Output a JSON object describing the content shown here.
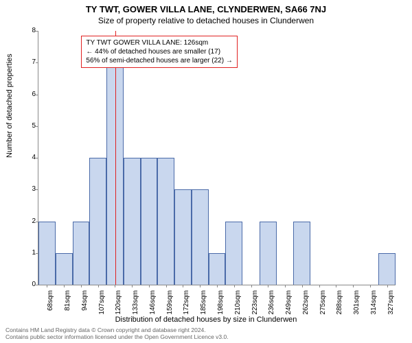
{
  "title": "TY TWT, GOWER VILLA LANE, CLYNDERWEN, SA66 7NJ",
  "subtitle": "Size of property relative to detached houses in Clunderwen",
  "ylabel": "Number of detached properties",
  "xlabel": "Distribution of detached houses by size in Clunderwen",
  "footer_line1": "Contains HM Land Registry data © Crown copyright and database right 2024.",
  "footer_line2": "Contains public sector information licensed under the Open Government Licence v3.0.",
  "chart": {
    "type": "histogram",
    "ylim": [
      0,
      8
    ],
    "ytick_step": 1,
    "yticks": [
      0,
      1,
      2,
      3,
      4,
      5,
      6,
      7,
      8
    ],
    "categories": [
      "68sqm",
      "81sqm",
      "94sqm",
      "107sqm",
      "120sqm",
      "133sqm",
      "146sqm",
      "159sqm",
      "172sqm",
      "185sqm",
      "198sqm",
      "210sqm",
      "223sqm",
      "236sqm",
      "249sqm",
      "262sqm",
      "275sqm",
      "288sqm",
      "301sqm",
      "314sqm",
      "327sqm"
    ],
    "values": [
      2,
      1,
      2,
      4,
      7,
      4,
      4,
      4,
      3,
      3,
      1,
      2,
      0,
      2,
      0,
      2,
      0,
      0,
      0,
      0,
      1
    ],
    "bar_color": "#c9d7ee",
    "bar_border_color": "#4a6aa8",
    "bar_border_width": 1,
    "bar_gap_ratio": 0.0,
    "background_color": "#ffffff",
    "axis_color": "#888888",
    "reference_line": {
      "x_position_ratio": 0.215,
      "color": "#e02020",
      "width": 1
    },
    "info_box": {
      "left_ratio": 0.12,
      "top_ratio": 0.02,
      "border_color": "#e02020",
      "lines": [
        "TY TWT GOWER VILLA LANE: 126sqm",
        "← 44% of detached houses are smaller (17)",
        "56% of semi-detached houses are larger (22) →"
      ]
    },
    "tick_fontsize": 10,
    "label_fontsize": 11,
    "title_fontsize": 13
  }
}
